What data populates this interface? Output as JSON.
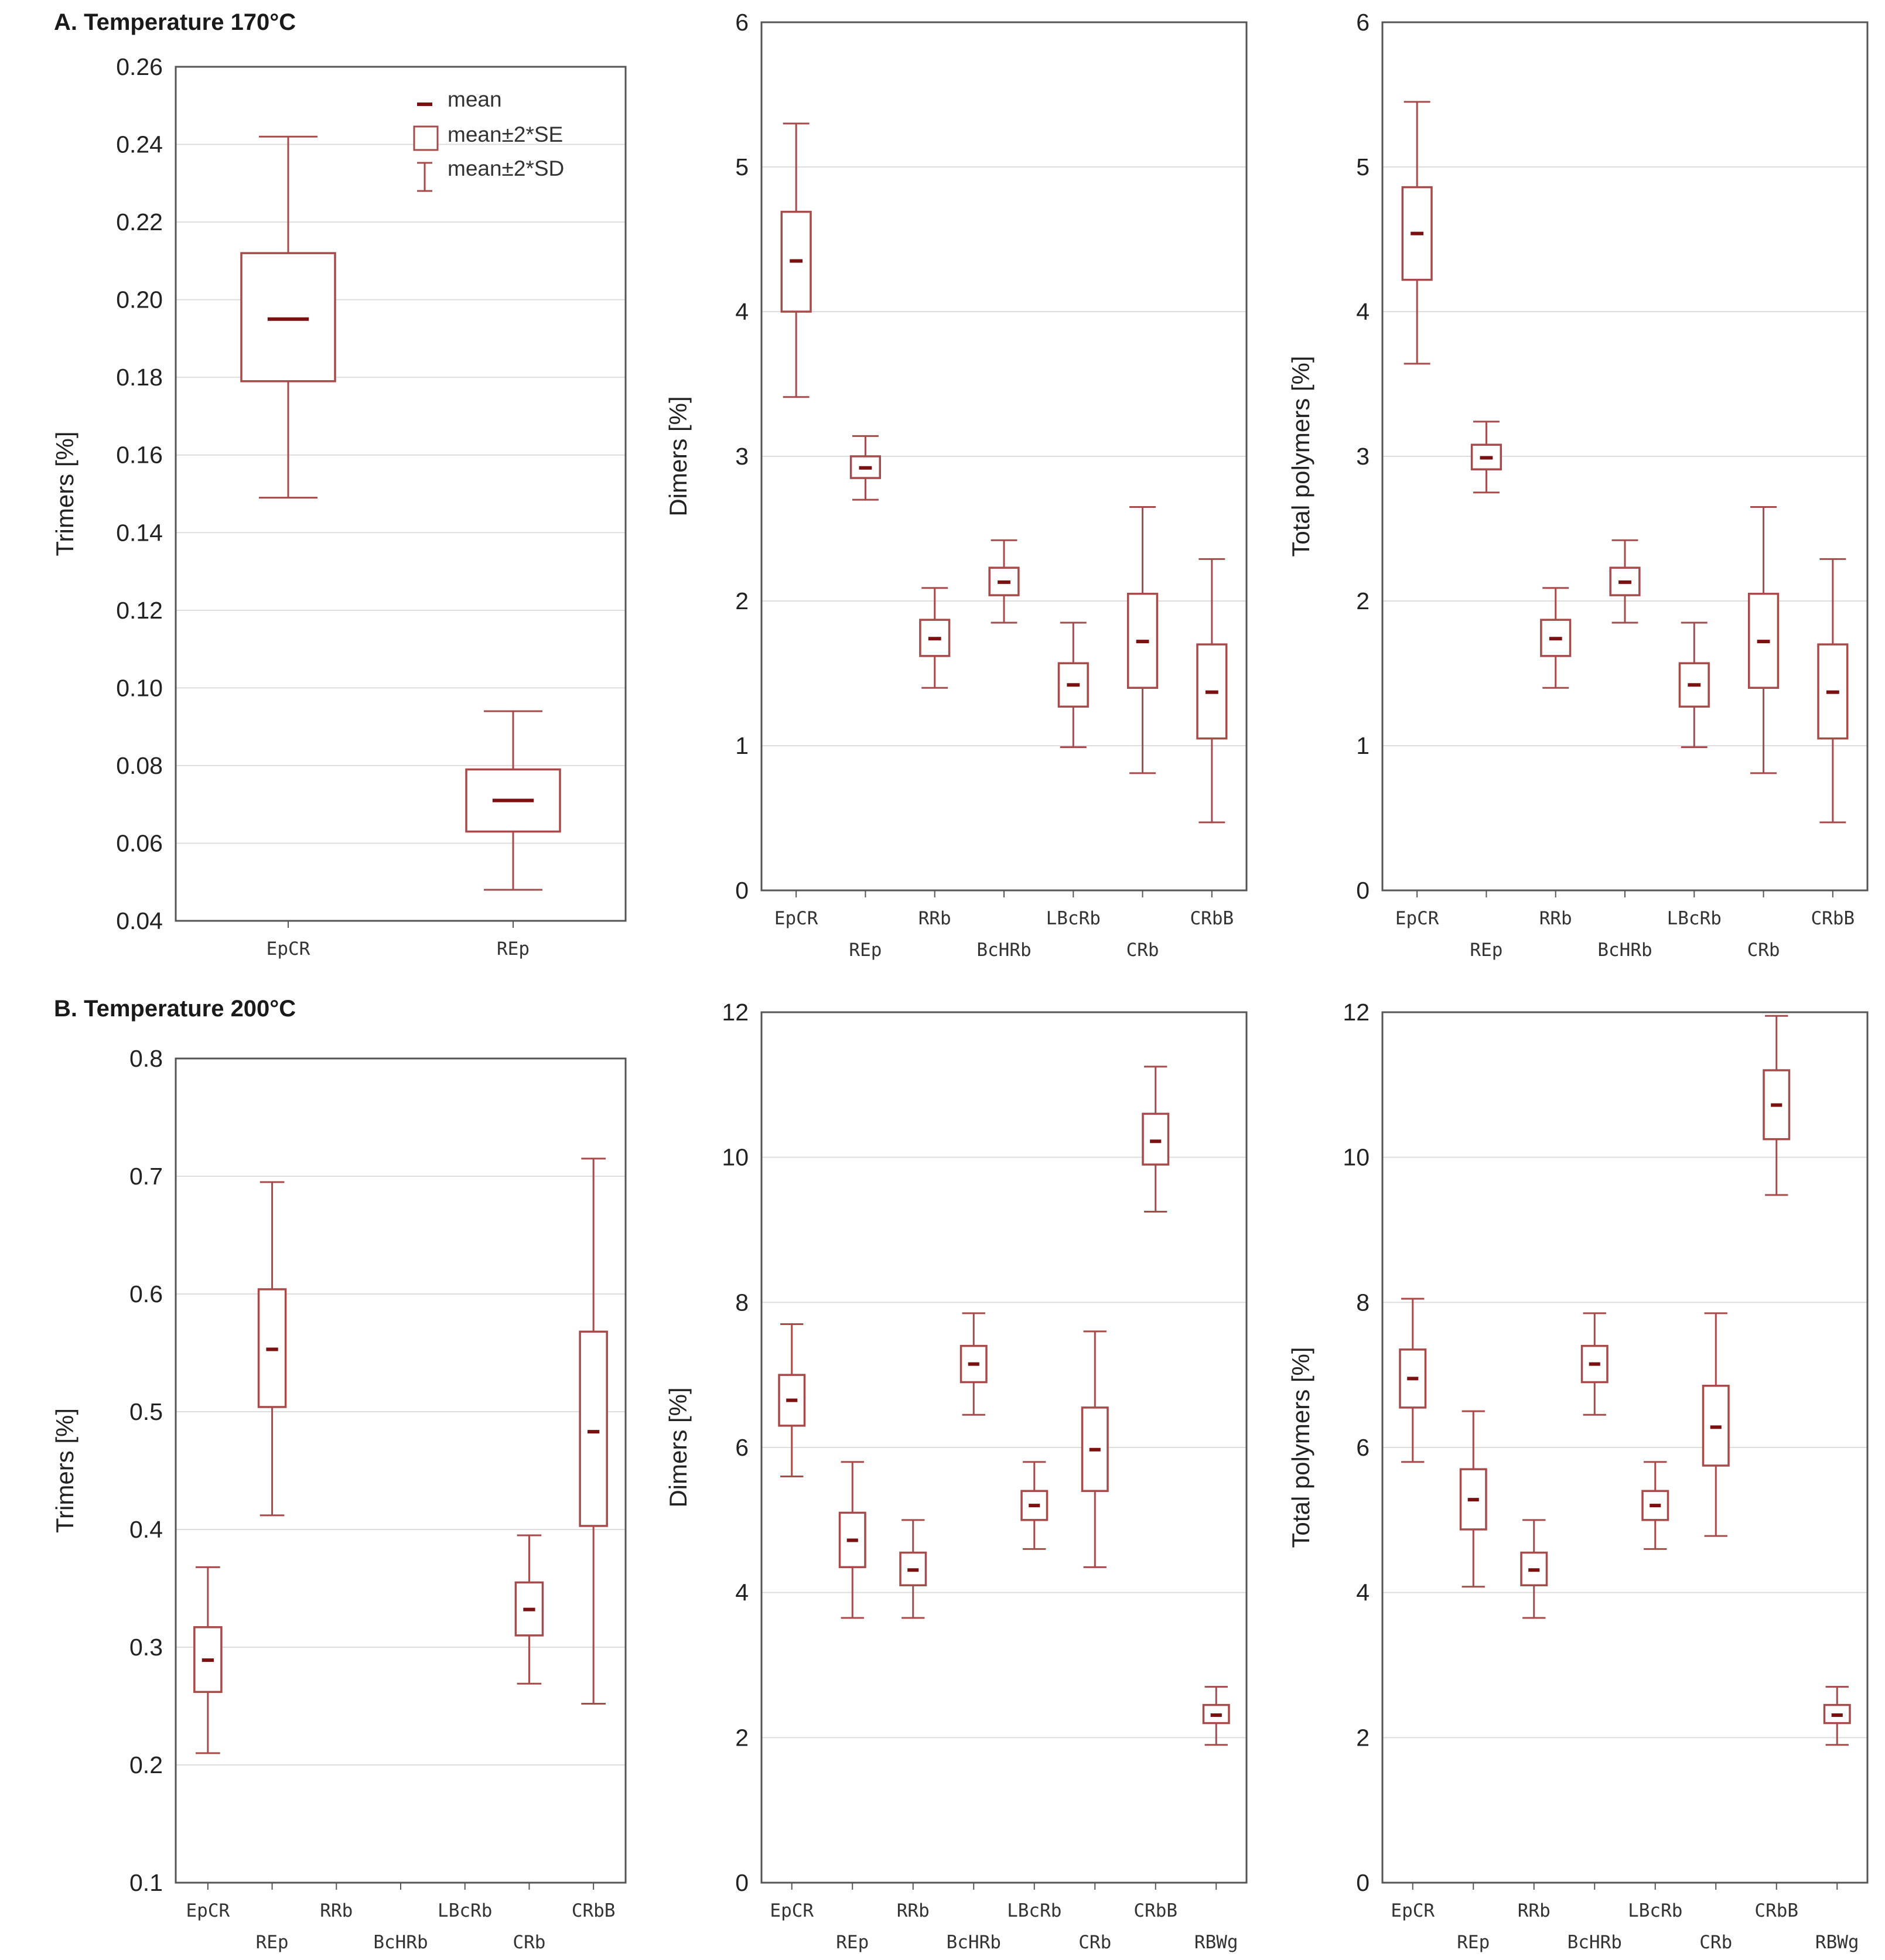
{
  "sections": {
    "a_title": "A. Temperature 170°C",
    "b_title": "B. Temperature 200°C"
  },
  "legend": {
    "mean": "mean",
    "se": "mean±2*SE",
    "sd": "mean±2*SD"
  },
  "colors": {
    "axis": "#555555",
    "grid": "#dddddd",
    "box": "#a64a4a",
    "mean": "#7b1010"
  },
  "chart_data": [
    {
      "id": "a_trimers",
      "type": "box",
      "ylabel": "Trimers [%]",
      "ylim": [
        0.04,
        0.26
      ],
      "yticks": [
        0.04,
        0.06,
        0.08,
        0.1,
        0.12,
        0.14,
        0.16,
        0.18,
        0.2,
        0.22,
        0.24,
        0.26
      ],
      "decimals": 2,
      "categories": [
        "EpCR",
        "REp"
      ],
      "mean": [
        0.195,
        0.071
      ],
      "se_low": [
        0.179,
        0.063
      ],
      "se_high": [
        0.212,
        0.079
      ],
      "sd_low": [
        0.149,
        0.048
      ],
      "sd_high": [
        0.242,
        0.094
      ],
      "legend": true
    },
    {
      "id": "a_dimers",
      "type": "box",
      "ylabel": "Dimers [%]",
      "ylim": [
        0,
        6
      ],
      "yticks": [
        0,
        1,
        2,
        3,
        4,
        5,
        6
      ],
      "decimals": 0,
      "categories": [
        "EpCR",
        "REp",
        "RRb",
        "BcHRb",
        "LBcRb",
        "CRb",
        "CRbB"
      ],
      "mean": [
        4.35,
        2.92,
        1.74,
        2.13,
        1.42,
        1.72,
        1.37
      ],
      "se_low": [
        4.0,
        2.85,
        1.62,
        2.04,
        1.27,
        1.4,
        1.05
      ],
      "se_high": [
        4.69,
        3.0,
        1.87,
        2.23,
        1.57,
        2.05,
        1.7
      ],
      "sd_low": [
        3.41,
        2.7,
        1.4,
        1.85,
        0.99,
        0.81,
        0.47
      ],
      "sd_high": [
        5.3,
        3.14,
        2.09,
        2.42,
        1.85,
        2.65,
        2.29
      ]
    },
    {
      "id": "a_total",
      "type": "box",
      "ylabel": "Total polymers [%]",
      "ylim": [
        0,
        6
      ],
      "yticks": [
        0,
        1,
        2,
        3,
        4,
        5,
        6
      ],
      "decimals": 0,
      "categories": [
        "EpCR",
        "REp",
        "RRb",
        "BcHRb",
        "LBcRb",
        "CRb",
        "CRbB"
      ],
      "mean": [
        4.54,
        2.99,
        1.74,
        2.13,
        1.42,
        1.72,
        1.37
      ],
      "se_low": [
        4.22,
        2.91,
        1.62,
        2.04,
        1.27,
        1.4,
        1.05
      ],
      "se_high": [
        4.86,
        3.08,
        1.87,
        2.23,
        1.57,
        2.05,
        1.7
      ],
      "sd_low": [
        3.64,
        2.75,
        1.4,
        1.85,
        0.99,
        0.81,
        0.47
      ],
      "sd_high": [
        5.45,
        3.24,
        2.09,
        2.42,
        1.85,
        2.65,
        2.29
      ]
    },
    {
      "id": "b_trimers",
      "type": "box",
      "ylabel": "Trimers [%]",
      "ylim": [
        0.1,
        0.8
      ],
      "yticks": [
        0.1,
        0.2,
        0.3,
        0.4,
        0.5,
        0.6,
        0.7,
        0.8
      ],
      "decimals": 1,
      "categories": [
        "EpCR",
        "REp",
        "RRb",
        "BcHRb",
        "LBcRb",
        "CRb",
        "CRbB"
      ],
      "mean": [
        0.289,
        0.553,
        null,
        null,
        null,
        0.332,
        0.483
      ],
      "se_low": [
        0.262,
        0.504,
        null,
        null,
        null,
        0.31,
        0.403
      ],
      "se_high": [
        0.317,
        0.604,
        null,
        null,
        null,
        0.355,
        0.568
      ],
      "sd_low": [
        0.21,
        0.412,
        null,
        null,
        null,
        0.269,
        0.252
      ],
      "sd_high": [
        0.368,
        0.695,
        null,
        null,
        null,
        0.395,
        0.715
      ]
    },
    {
      "id": "b_dimers",
      "type": "box",
      "ylabel": "Dimers [%]",
      "ylim": [
        0,
        12
      ],
      "yticks": [
        0,
        2,
        4,
        6,
        8,
        10,
        12
      ],
      "decimals": 0,
      "categories": [
        "EpCR",
        "REp",
        "RRb",
        "BcHRb",
        "LBcRb",
        "CRb",
        "CRbB",
        "RBWg"
      ],
      "mean": [
        6.65,
        4.72,
        4.31,
        7.15,
        5.2,
        5.97,
        10.22,
        2.31
      ],
      "se_low": [
        6.3,
        4.35,
        4.1,
        6.9,
        5.0,
        5.4,
        9.9,
        2.2
      ],
      "se_high": [
        7.0,
        5.1,
        4.55,
        7.4,
        5.4,
        6.55,
        10.6,
        2.45
      ],
      "sd_low": [
        5.6,
        3.65,
        3.65,
        6.45,
        4.6,
        4.35,
        9.25,
        1.9
      ],
      "sd_high": [
        7.7,
        5.8,
        5.0,
        7.85,
        5.8,
        7.6,
        11.25,
        2.7
      ]
    },
    {
      "id": "b_total",
      "type": "box",
      "ylabel": "Total polymers [%]",
      "ylim": [
        0,
        12
      ],
      "yticks": [
        0,
        2,
        4,
        6,
        8,
        10,
        12
      ],
      "decimals": 0,
      "categories": [
        "EpCR",
        "REp",
        "RRb",
        "BcHRb",
        "LBcRb",
        "CRb",
        "CRbB",
        "RBWg"
      ],
      "mean": [
        6.95,
        5.28,
        4.31,
        7.15,
        5.2,
        6.28,
        10.72,
        2.31
      ],
      "se_low": [
        6.55,
        4.87,
        4.1,
        6.9,
        5.0,
        5.75,
        10.25,
        2.2
      ],
      "se_high": [
        7.35,
        5.7,
        4.55,
        7.4,
        5.4,
        6.85,
        11.2,
        2.45
      ],
      "sd_low": [
        5.8,
        4.08,
        3.65,
        6.45,
        4.6,
        4.78,
        9.48,
        1.9
      ],
      "sd_high": [
        8.05,
        6.5,
        5.0,
        7.85,
        5.8,
        7.85,
        11.95,
        2.7
      ]
    }
  ]
}
